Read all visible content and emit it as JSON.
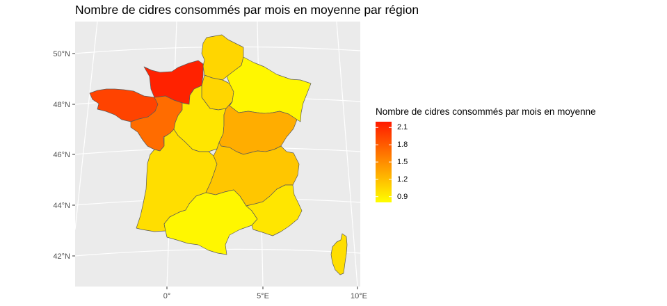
{
  "title": "Nombre de cidres consommés par mois en moyenne par région",
  "legend": {
    "title": "Nombre de cidres consommés par mois en moyenne",
    "ticks": [
      "2.1",
      "1.8",
      "1.5",
      "1.2",
      "0.9"
    ],
    "min": 0.8,
    "max": 2.2,
    "low_color": "#FFFF00",
    "high_color": "#FF1A00"
  },
  "axes": {
    "lat_labels": [
      "50°N",
      "48°N",
      "46°N",
      "44°N",
      "42°N"
    ],
    "lon_labels": [
      "0°",
      "5°E",
      "10°E"
    ]
  },
  "colors": {
    "panel": "#EBEBEB",
    "grid": "#FFFFFF",
    "border": "#595959"
  },
  "regions": [
    {
      "name": "Hauts-de-France",
      "value": 1.05
    },
    {
      "name": "Normandie",
      "value": 2.15
    },
    {
      "name": "Bretagne",
      "value": 1.95
    },
    {
      "name": "Pays de la Loire",
      "value": 1.7
    },
    {
      "name": "Île-de-France",
      "value": 1.05
    },
    {
      "name": "Grand Est",
      "value": 0.85
    },
    {
      "name": "Centre-Val de Loire",
      "value": 0.95
    },
    {
      "name": "Bourgogne-Franche-Comté",
      "value": 1.3
    },
    {
      "name": "Nouvelle-Aquitaine",
      "value": 1.0
    },
    {
      "name": "Auvergne-Rhône-Alpes",
      "value": 1.15
    },
    {
      "name": "Occitanie",
      "value": 0.85
    },
    {
      "name": "Provence-Alpes-Côte d'Azur",
      "value": 0.95
    },
    {
      "name": "Corse",
      "value": 1.0
    }
  ]
}
